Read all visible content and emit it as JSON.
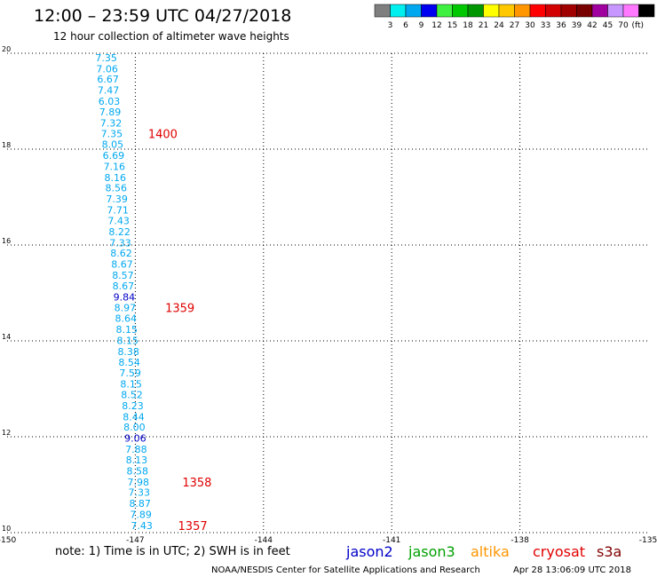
{
  "header": {
    "title": "12:00 – 23:59 UTC 04/27/2018",
    "subtitle": "12 hour collection of altimeter wave heights"
  },
  "colorbar": {
    "colors": [
      "#7f7f7f",
      "#00f0f0",
      "#00a8f0",
      "#0000f0",
      "#40f040",
      "#00c800",
      "#009600",
      "#ffff00",
      "#ffc800",
      "#ff9600",
      "#ff0000",
      "#d20000",
      "#a00000",
      "#780000",
      "#a000a0",
      "#c896ff",
      "#ff78ff",
      "#000000"
    ],
    "labels": [
      "3",
      "6",
      "9",
      "12",
      "15",
      "18",
      "21",
      "24",
      "27",
      "30",
      "33",
      "36",
      "39",
      "42",
      "45",
      "70"
    ],
    "unit": "(ft)"
  },
  "chart_data": {
    "type": "scatter",
    "title": "12:00 – 23:59 UTC 04/27/2018",
    "subtitle": "12 hour collection of altimeter wave heights",
    "xlim": [
      -150,
      -135
    ],
    "ylim": [
      10,
      20
    ],
    "x_ticks": [
      "-150",
      "-147",
      "-144",
      "-141",
      "-138",
      "-135"
    ],
    "y_ticks": [
      "20",
      "18",
      "16",
      "14",
      "12",
      "10"
    ],
    "grid": true,
    "series": [
      {
        "name": "jason2",
        "color": "#00a8f0",
        "points": [
          {
            "lon": -147.68,
            "lat": 19.91,
            "v": "7.35"
          },
          {
            "lon": -147.66,
            "lat": 19.68,
            "v": "7.06"
          },
          {
            "lon": -147.64,
            "lat": 19.46,
            "v": "6.67"
          },
          {
            "lon": -147.63,
            "lat": 19.23,
            "v": "7.47"
          },
          {
            "lon": -147.61,
            "lat": 19.0,
            "v": "6.03"
          },
          {
            "lon": -147.59,
            "lat": 18.78,
            "v": "7.89"
          },
          {
            "lon": -147.57,
            "lat": 18.55,
            "v": "7.32"
          },
          {
            "lon": -147.55,
            "lat": 18.32,
            "v": "7.35"
          },
          {
            "lon": -147.53,
            "lat": 18.1,
            "v": "8.05"
          },
          {
            "lon": -147.51,
            "lat": 17.87,
            "v": "6.69"
          },
          {
            "lon": -147.49,
            "lat": 17.64,
            "v": "7.16"
          },
          {
            "lon": -147.47,
            "lat": 17.41,
            "v": "8.16"
          },
          {
            "lon": -147.45,
            "lat": 17.19,
            "v": "8.56"
          },
          {
            "lon": -147.43,
            "lat": 16.96,
            "v": "7.39"
          },
          {
            "lon": -147.41,
            "lat": 16.73,
            "v": "7.71"
          },
          {
            "lon": -147.39,
            "lat": 16.51,
            "v": "7.43"
          },
          {
            "lon": -147.37,
            "lat": 16.28,
            "v": "8.22"
          },
          {
            "lon": -147.35,
            "lat": 16.05,
            "v": "7.33"
          },
          {
            "lon": -147.33,
            "lat": 15.83,
            "v": "8.62"
          },
          {
            "lon": -147.31,
            "lat": 15.6,
            "v": "8.67"
          },
          {
            "lon": -147.29,
            "lat": 15.37,
            "v": "8.57"
          },
          {
            "lon": -147.28,
            "lat": 15.15,
            "v": "8.67"
          },
          {
            "lon": -147.26,
            "lat": 14.92,
            "v": "9.84",
            "color": "#0000c8"
          },
          {
            "lon": -147.24,
            "lat": 14.69,
            "v": "8.97"
          },
          {
            "lon": -147.22,
            "lat": 14.47,
            "v": "8.64"
          },
          {
            "lon": -147.2,
            "lat": 14.24,
            "v": "8.15"
          },
          {
            "lon": -147.18,
            "lat": 14.01,
            "v": "8.15"
          },
          {
            "lon": -147.16,
            "lat": 13.78,
            "v": "8.38"
          },
          {
            "lon": -147.14,
            "lat": 13.56,
            "v": "8.54"
          },
          {
            "lon": -147.12,
            "lat": 13.33,
            "v": "7.59"
          },
          {
            "lon": -147.1,
            "lat": 13.1,
            "v": "8.15"
          },
          {
            "lon": -147.08,
            "lat": 12.88,
            "v": "8.52"
          },
          {
            "lon": -147.06,
            "lat": 12.65,
            "v": "8.23"
          },
          {
            "lon": -147.04,
            "lat": 12.42,
            "v": "8.44"
          },
          {
            "lon": -147.02,
            "lat": 12.2,
            "v": "8.00"
          },
          {
            "lon": -147.0,
            "lat": 11.97,
            "v": "9.06",
            "color": "#0000c8"
          },
          {
            "lon": -146.98,
            "lat": 11.74,
            "v": "7.88"
          },
          {
            "lon": -146.97,
            "lat": 11.52,
            "v": "8.13"
          },
          {
            "lon": -146.95,
            "lat": 11.29,
            "v": "8.58"
          },
          {
            "lon": -146.93,
            "lat": 11.06,
            "v": "7.98"
          },
          {
            "lon": -146.91,
            "lat": 10.84,
            "v": "7.33"
          },
          {
            "lon": -146.89,
            "lat": 10.61,
            "v": "8.87"
          },
          {
            "lon": -146.87,
            "lat": 10.38,
            "v": "7.89"
          },
          {
            "lon": -146.85,
            "lat": 10.15,
            "v": "7.43"
          }
        ]
      }
    ],
    "time_labels": [
      {
        "lon": -146.7,
        "lat": 18.32,
        "text": "1400"
      },
      {
        "lon": -146.3,
        "lat": 14.69,
        "text": "1359"
      },
      {
        "lon": -145.9,
        "lat": 11.06,
        "text": "1358"
      },
      {
        "lon": -146.0,
        "lat": 10.15,
        "text": "1357"
      }
    ]
  },
  "footer": {
    "note": "note:  1) Time is in UTC;  2) SWH is in feet",
    "satellites": [
      {
        "name": "jason2",
        "color": "#0000c8"
      },
      {
        "name": "jason3",
        "color": "#00a000"
      },
      {
        "name": "altika",
        "color": "#ff9600"
      },
      {
        "name": "cryosat",
        "color": "#e00000"
      },
      {
        "name": "s3a",
        "color": "#800000"
      }
    ],
    "credit": "NOAA/NESDIS Center for Satellite Applications and Research",
    "timestamp": "Apr 28 13:06:09 UTC 2018"
  }
}
